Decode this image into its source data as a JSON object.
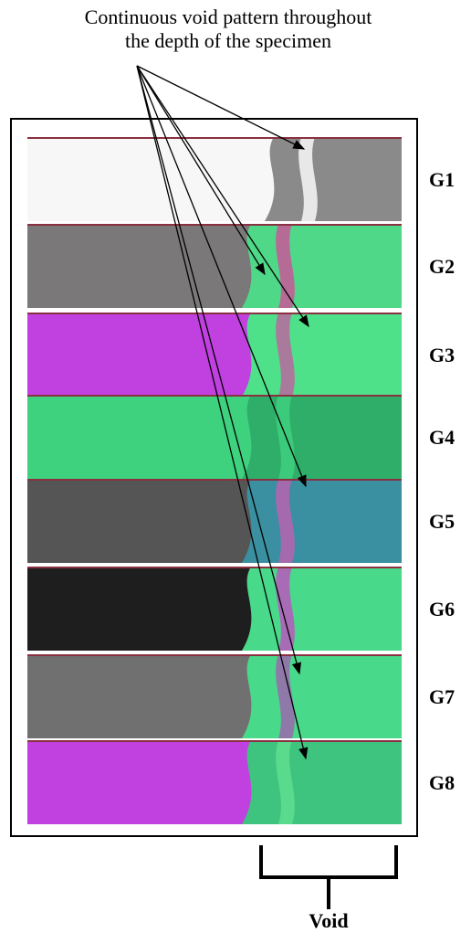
{
  "annotation": {
    "lines": [
      "Continuous void pattern throughout",
      "the depth of the specimen"
    ]
  },
  "groups": [
    "G1",
    "G2",
    "G3",
    "G4",
    "G5",
    "G6",
    "G7",
    "G8"
  ],
  "void_label": "Void"
}
